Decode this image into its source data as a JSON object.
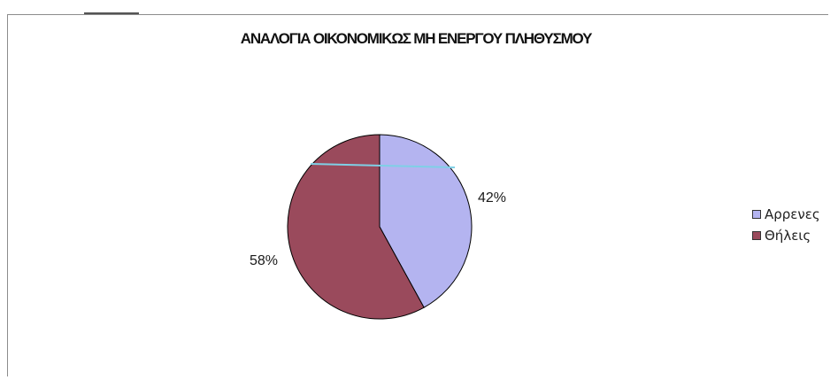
{
  "chart_data": {
    "type": "pie",
    "title": "ΑΝΑΛΟΓΙΑ ΟΙΚΟΝΟΜΙΚΩΣ ΜΗ ΕΝΕΡΓΟΥ ΠΛΗΘΥΣΜΟΥ",
    "categories": [
      "Αρρενες",
      "Θήλεις"
    ],
    "values": [
      42,
      58
    ],
    "data_labels": [
      "42%",
      "58%"
    ],
    "colors": [
      "#b4b4f0",
      "#9a4a5c"
    ],
    "legend_position": "right"
  }
}
